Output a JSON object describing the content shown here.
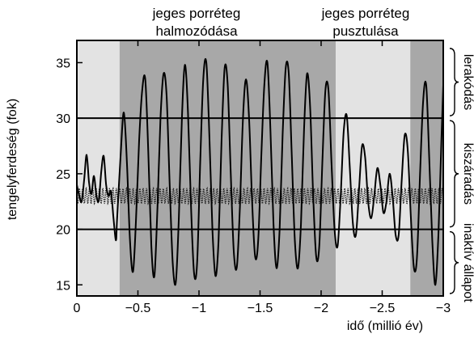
{
  "chart_data": {
    "type": "line",
    "xlabel": "idő (millió év)",
    "ylabel": "tengelyferdeség (fok)",
    "xlim": [
      0,
      -3
    ],
    "ylim": [
      14,
      37
    ],
    "xticks": [
      {
        "value": 0,
        "label": "0"
      },
      {
        "value": -0.5,
        "label": "−0.5"
      },
      {
        "value": -1,
        "label": "−1"
      },
      {
        "value": -1.5,
        "label": "−1.5"
      },
      {
        "value": -2,
        "label": "−2"
      },
      {
        "value": -2.5,
        "label": "−2.5"
      },
      {
        "value": -3,
        "label": "−3"
      }
    ],
    "yticks": [
      {
        "value": 15,
        "label": "15"
      },
      {
        "value": 20,
        "label": "20"
      },
      {
        "value": 25,
        "label": "25"
      },
      {
        "value": 30,
        "label": "30"
      },
      {
        "value": 35,
        "label": "35"
      }
    ],
    "reference_lines": [
      20,
      30
    ],
    "shaded_regions": [
      {
        "x_start": 0,
        "x_end": -0.35,
        "shade": "#e3e3e3"
      },
      {
        "x_start": -0.35,
        "x_end": -2.12,
        "shade": "#a8a8a8"
      },
      {
        "x_start": -2.12,
        "x_end": -2.73,
        "shade": "#e3e3e3"
      },
      {
        "x_start": -2.73,
        "x_end": -3,
        "shade": "#a8a8a8"
      }
    ],
    "top_annotations": [
      {
        "x": -0.85,
        "lines": [
          "jeges porréteg",
          "halmozódása"
        ]
      },
      {
        "x": -2.38,
        "lines": [
          "jeges porréteg",
          "pusztulása"
        ]
      }
    ],
    "right_brackets": [
      {
        "label": "lerakódás",
        "y_range": [
          30,
          36.5
        ]
      },
      {
        "label": "kiszáradás",
        "y_range": [
          20,
          30
        ]
      },
      {
        "label": "inaktív állapot",
        "y_range": [
          14,
          20
        ]
      }
    ],
    "series": [
      {
        "style": "solid",
        "points": [
          [
            0.0,
            24.0
          ],
          [
            -0.02,
            23.0
          ],
          [
            -0.04,
            22.5
          ],
          [
            -0.06,
            24.5
          ],
          [
            -0.08,
            26.7
          ],
          [
            -0.1,
            24.2
          ],
          [
            -0.12,
            23.2
          ],
          [
            -0.14,
            24.8
          ],
          [
            -0.16,
            23.0
          ],
          [
            -0.18,
            22.6
          ],
          [
            -0.2,
            25.2
          ],
          [
            -0.22,
            26.6
          ],
          [
            -0.24,
            24.0
          ],
          [
            -0.26,
            23.0
          ],
          [
            -0.28,
            23.4
          ],
          [
            -0.3,
            21.0
          ],
          [
            -0.32,
            19.0
          ],
          [
            -0.33,
            21.0
          ],
          [
            -0.36,
            27.0
          ],
          [
            -0.385,
            30.5
          ],
          [
            -0.41,
            26.0
          ],
          [
            -0.435,
            19.0
          ],
          [
            -0.46,
            16.2
          ],
          [
            -0.485,
            21.0
          ],
          [
            -0.51,
            28.0
          ],
          [
            -0.535,
            32.5
          ],
          [
            -0.56,
            33.5
          ],
          [
            -0.585,
            27.0
          ],
          [
            -0.61,
            18.5
          ],
          [
            -0.635,
            15.8
          ],
          [
            -0.66,
            22.0
          ],
          [
            -0.685,
            30.0
          ],
          [
            -0.71,
            34.0
          ],
          [
            -0.735,
            32.0
          ],
          [
            -0.76,
            24.0
          ],
          [
            -0.785,
            17.0
          ],
          [
            -0.81,
            15.2
          ],
          [
            -0.835,
            21.0
          ],
          [
            -0.86,
            30.0
          ],
          [
            -0.885,
            34.8
          ],
          [
            -0.91,
            30.5
          ],
          [
            -0.935,
            22.0
          ],
          [
            -0.96,
            16.0
          ],
          [
            -0.985,
            17.0
          ],
          [
            -1.01,
            26.0
          ],
          [
            -1.035,
            33.5
          ],
          [
            -1.06,
            35.0
          ],
          [
            -1.085,
            28.5
          ],
          [
            -1.11,
            20.0
          ],
          [
            -1.135,
            15.8
          ],
          [
            -1.16,
            19.0
          ],
          [
            -1.185,
            28.0
          ],
          [
            -1.21,
            34.5
          ],
          [
            -1.235,
            33.0
          ],
          [
            -1.26,
            25.0
          ],
          [
            -1.285,
            18.0
          ],
          [
            -1.31,
            16.6
          ],
          [
            -1.335,
            22.0
          ],
          [
            -1.36,
            30.0
          ],
          [
            -1.385,
            33.5
          ],
          [
            -1.41,
            30.0
          ],
          [
            -1.435,
            22.5
          ],
          [
            -1.46,
            17.5
          ],
          [
            -1.485,
            19.0
          ],
          [
            -1.51,
            26.5
          ],
          [
            -1.535,
            33.0
          ],
          [
            -1.56,
            35.0
          ],
          [
            -1.585,
            29.0
          ],
          [
            -1.61,
            20.5
          ],
          [
            -1.635,
            16.5
          ],
          [
            -1.66,
            20.0
          ],
          [
            -1.685,
            28.5
          ],
          [
            -1.71,
            34.5
          ],
          [
            -1.735,
            34.0
          ],
          [
            -1.76,
            26.5
          ],
          [
            -1.785,
            19.0
          ],
          [
            -1.81,
            16.5
          ],
          [
            -1.835,
            20.5
          ],
          [
            -1.86,
            29.0
          ],
          [
            -1.885,
            34.0
          ],
          [
            -1.91,
            31.0
          ],
          [
            -1.935,
            23.0
          ],
          [
            -1.96,
            17.5
          ],
          [
            -1.985,
            18.5
          ],
          [
            -2.01,
            26.0
          ],
          [
            -2.035,
            32.5
          ],
          [
            -2.06,
            32.5
          ],
          [
            -2.085,
            26.0
          ],
          [
            -2.11,
            20.0
          ],
          [
            -2.135,
            18.5
          ],
          [
            -2.16,
            23.0
          ],
          [
            -2.185,
            28.8
          ],
          [
            -2.21,
            30.2
          ],
          [
            -2.235,
            25.5
          ],
          [
            -2.26,
            20.5
          ],
          [
            -2.285,
            19.5
          ],
          [
            -2.31,
            23.5
          ],
          [
            -2.335,
            27.5
          ],
          [
            -2.36,
            26.5
          ],
          [
            -2.385,
            22.5
          ],
          [
            -2.41,
            21.0
          ],
          [
            -2.435,
            23.0
          ],
          [
            -2.46,
            25.5
          ],
          [
            -2.485,
            24.0
          ],
          [
            -2.51,
            21.5
          ],
          [
            -2.535,
            22.5
          ],
          [
            -2.56,
            25.0
          ],
          [
            -2.585,
            23.0
          ],
          [
            -2.61,
            19.5
          ],
          [
            -2.635,
            19.5
          ],
          [
            -2.66,
            24.5
          ],
          [
            -2.685,
            28.5
          ],
          [
            -2.71,
            27.0
          ],
          [
            -2.735,
            21.0
          ],
          [
            -2.76,
            16.5
          ],
          [
            -2.785,
            17.5
          ],
          [
            -2.81,
            25.0
          ],
          [
            -2.835,
            31.5
          ],
          [
            -2.86,
            33.0
          ],
          [
            -2.885,
            26.5
          ],
          [
            -2.91,
            19.0
          ],
          [
            -2.935,
            15.0
          ],
          [
            -2.96,
            19.5
          ],
          [
            -2.985,
            28.0
          ],
          [
            -3.0,
            33.0
          ]
        ]
      },
      {
        "style": "dotted",
        "mean": 23.0,
        "amplitude": 0.7,
        "period": 0.0275
      }
    ]
  }
}
